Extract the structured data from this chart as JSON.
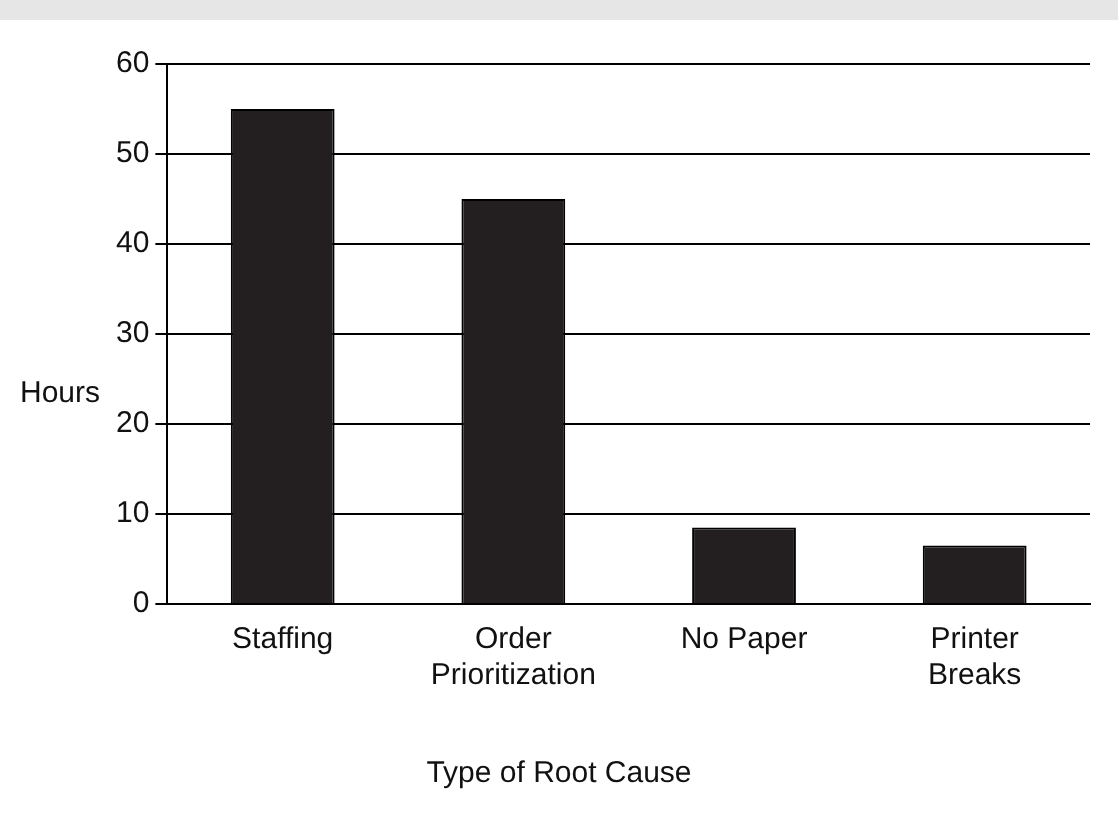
{
  "chart_data": {
    "type": "bar",
    "xlabel": "Type of Root Cause",
    "ylabel": "Hours",
    "categories": [
      "Staffing",
      "Order Prioritization",
      "No Paper",
      "Printer Breaks"
    ],
    "values": [
      55,
      45,
      8.5,
      6.5
    ],
    "color": "#231f20",
    "ylim": [
      0,
      60
    ],
    "yticks": [
      0,
      10,
      20,
      30,
      40,
      50,
      60
    ],
    "grid": "y"
  }
}
